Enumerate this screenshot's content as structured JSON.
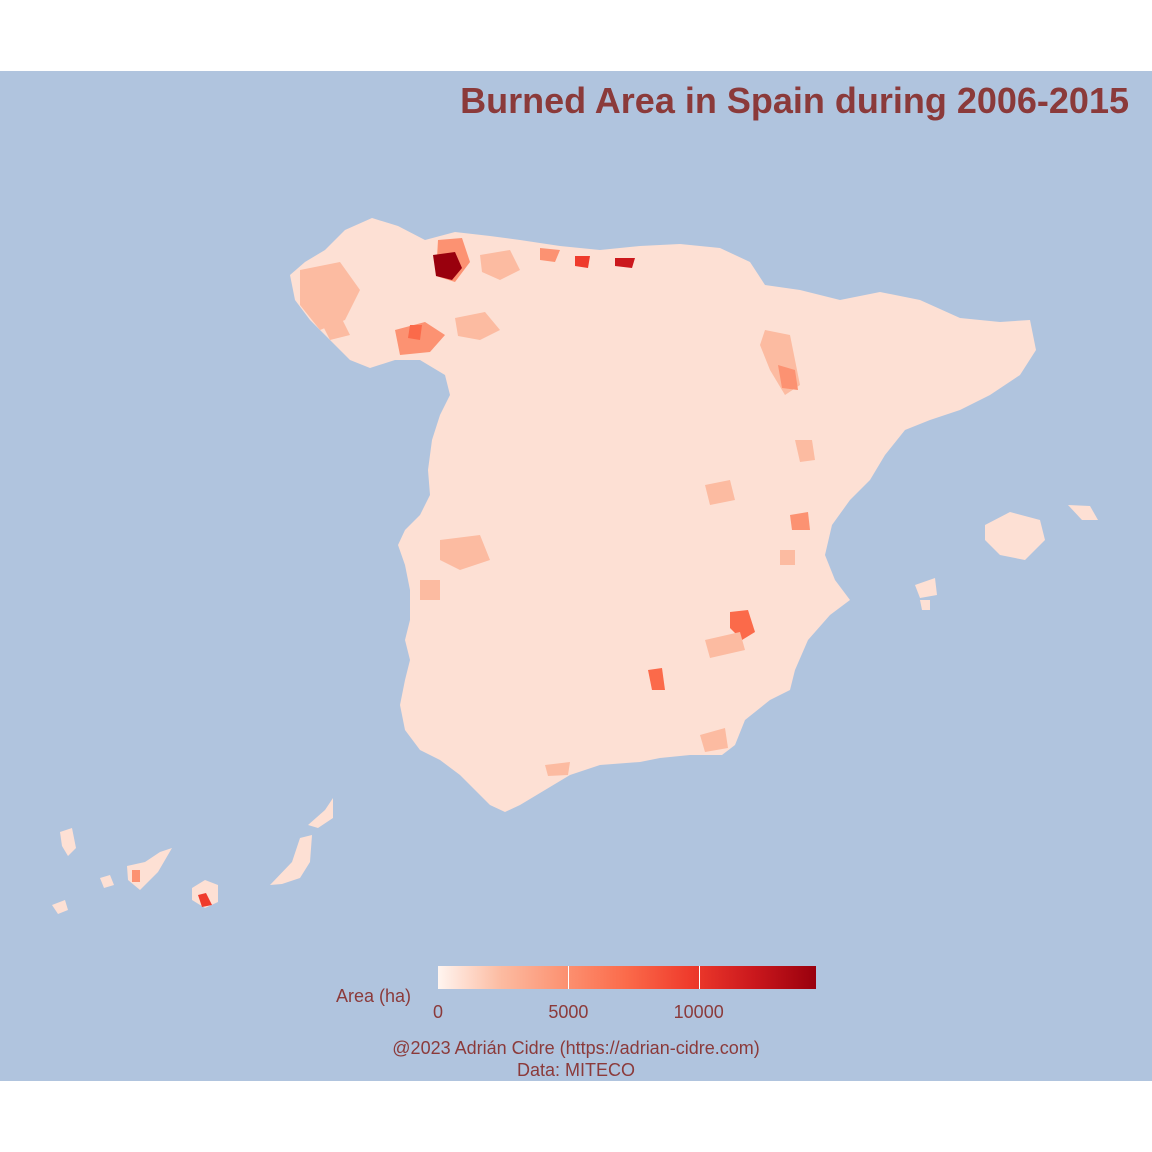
{
  "title": "Burned Area in Spain during 2006-2015",
  "legend": {
    "label": "Area (ha)",
    "ticks": [
      "0",
      "5000",
      "10000"
    ],
    "tick_values": [
      0,
      5000,
      10000
    ],
    "max_value": 14500,
    "colors": [
      "#fff5f0",
      "#fcbba1",
      "#fc9272",
      "#fb6a4a",
      "#ef3b2c",
      "#cb181d",
      "#99000d"
    ]
  },
  "caption": {
    "line1": "@2023 Adrián Cidre (https://adrian-cidre.com)",
    "line2": "Data: MITECO"
  },
  "colors": {
    "background": "#b0c4de",
    "land_base": "#fde0d4",
    "text": "#8b3a3a"
  }
}
